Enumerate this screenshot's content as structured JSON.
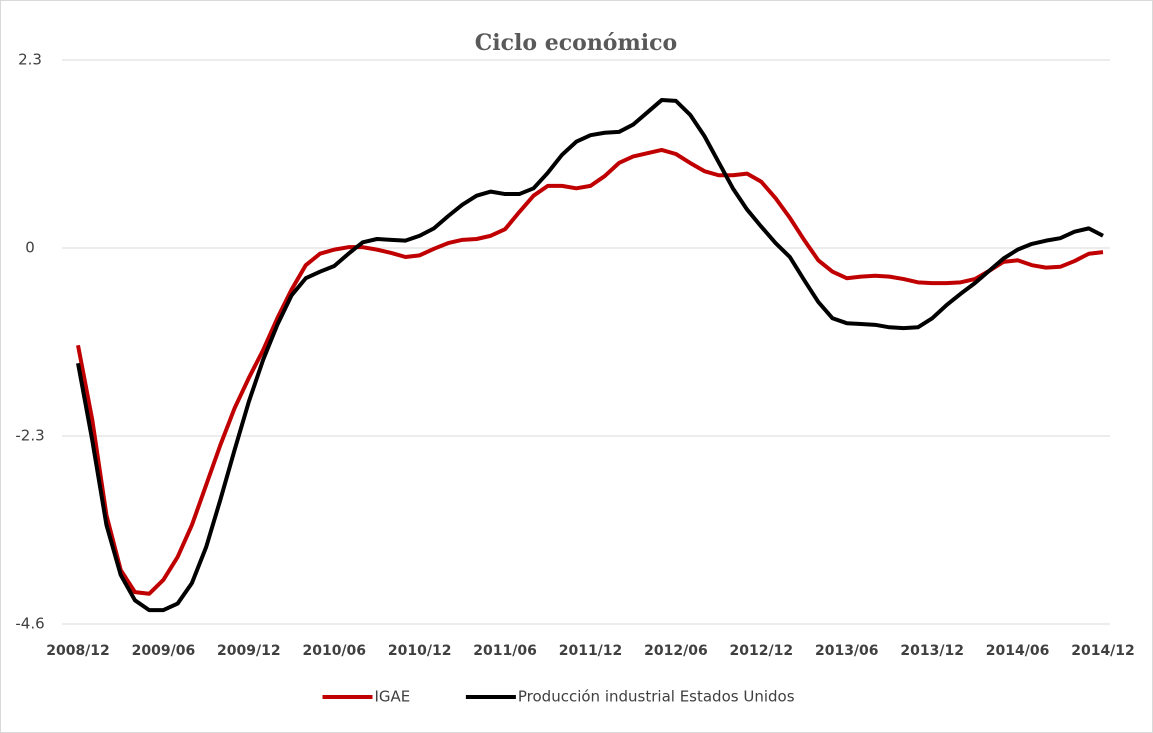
{
  "chart_data": {
    "type": "line",
    "title": "Ciclo económico",
    "categories": [
      "2008/12",
      null,
      null,
      null,
      null,
      null,
      "2009/06",
      null,
      null,
      null,
      null,
      null,
      "2009/12",
      null,
      null,
      null,
      null,
      null,
      "2010/06",
      null,
      null,
      null,
      null,
      null,
      "2010/12",
      null,
      null,
      null,
      null,
      null,
      "2011/06",
      null,
      null,
      null,
      null,
      null,
      "2011/12",
      null,
      null,
      null,
      null,
      null,
      "2012/06",
      null,
      null,
      null,
      null,
      null,
      "2012/12",
      null,
      null,
      null,
      null,
      null,
      "2013/06",
      null,
      null,
      null,
      null,
      null,
      "2013/12",
      null,
      null,
      null,
      null,
      null,
      "2014/06",
      null,
      null,
      null,
      null,
      null,
      "2014/12"
    ],
    "series": [
      {
        "name": "IGAE",
        "color": "#c00000",
        "values": [
          -1.19,
          -2.1,
          -3.27,
          -3.94,
          -4.21,
          -4.23,
          -4.06,
          -3.78,
          -3.39,
          -2.9,
          -2.41,
          -1.96,
          -1.59,
          -1.25,
          -0.86,
          -0.51,
          -0.21,
          -0.07,
          -0.02,
          0.01,
          0.01,
          -0.02,
          -0.06,
          -0.11,
          -0.09,
          -0.01,
          0.06,
          0.1,
          0.11,
          0.15,
          0.23,
          0.44,
          0.64,
          0.76,
          0.76,
          0.73,
          0.76,
          0.88,
          1.04,
          1.12,
          1.16,
          1.2,
          1.15,
          1.04,
          0.94,
          0.89,
          0.89,
          0.91,
          0.81,
          0.61,
          0.37,
          0.1,
          -0.15,
          -0.29,
          -0.37,
          -0.35,
          -0.34,
          -0.35,
          -0.38,
          -0.42,
          -0.43,
          -0.43,
          -0.42,
          -0.38,
          -0.28,
          -0.17,
          -0.15,
          -0.21,
          -0.24,
          -0.23,
          -0.16,
          -0.07,
          -0.05
        ]
      },
      {
        "name": "Producción industrial Estados Unidos",
        "color": "#000000",
        "values": [
          -1.41,
          -2.35,
          -3.39,
          -4.0,
          -4.31,
          -4.43,
          -4.43,
          -4.35,
          -4.1,
          -3.66,
          -3.08,
          -2.47,
          -1.88,
          -1.37,
          -0.94,
          -0.58,
          -0.37,
          -0.29,
          -0.22,
          -0.07,
          0.07,
          0.11,
          0.1,
          0.09,
          0.15,
          0.24,
          0.39,
          0.53,
          0.64,
          0.69,
          0.66,
          0.66,
          0.73,
          0.92,
          1.14,
          1.3,
          1.38,
          1.41,
          1.42,
          1.51,
          1.66,
          1.81,
          1.8,
          1.63,
          1.37,
          1.05,
          0.73,
          0.47,
          0.26,
          0.06,
          -0.11,
          -0.39,
          -0.66,
          -0.86,
          -0.92,
          -0.93,
          -0.94,
          -0.97,
          -0.98,
          -0.97,
          -0.86,
          -0.7,
          -0.56,
          -0.43,
          -0.28,
          -0.13,
          -0.02,
          0.05,
          0.09,
          0.12,
          0.2,
          0.24,
          0.15
        ]
      }
    ],
    "ylim": [
      -4.6,
      2.3
    ],
    "yticks": [
      2.3,
      0,
      -2.3,
      -4.6
    ],
    "grid": true,
    "legend": "bottom"
  }
}
